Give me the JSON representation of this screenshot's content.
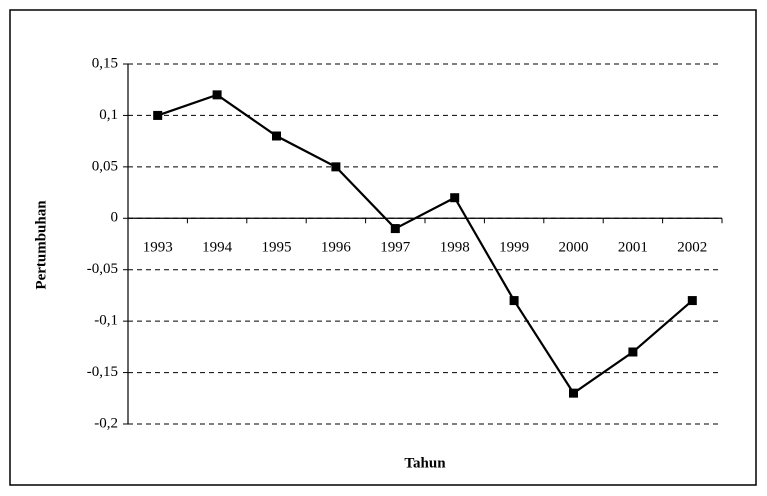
{
  "chart_data": {
    "type": "line",
    "xlabel": "Tahun",
    "ylabel": "Pertumbuhan",
    "categories": [
      "1993",
      "1994",
      "1995",
      "1996",
      "1997",
      "1998",
      "1999",
      "2000",
      "2001",
      "2002"
    ],
    "values": [
      0.1,
      0.12,
      0.08,
      0.05,
      -0.01,
      0.02,
      -0.08,
      -0.17,
      -0.13,
      -0.08
    ],
    "color": "#000000",
    "ylim": [
      -0.2,
      0.15
    ],
    "yticks": [
      {
        "value": -0.2,
        "label": "-0,2"
      },
      {
        "value": -0.15,
        "label": "-0,15"
      },
      {
        "value": -0.1,
        "label": "-0,1"
      },
      {
        "value": -0.05,
        "label": "-0,05"
      },
      0,
      {
        "value": 0.05,
        "label": "0,05"
      },
      {
        "value": 0.1,
        "label": "0,1"
      },
      {
        "value": 0.15,
        "label": "0,15"
      }
    ],
    "grid": true
  }
}
